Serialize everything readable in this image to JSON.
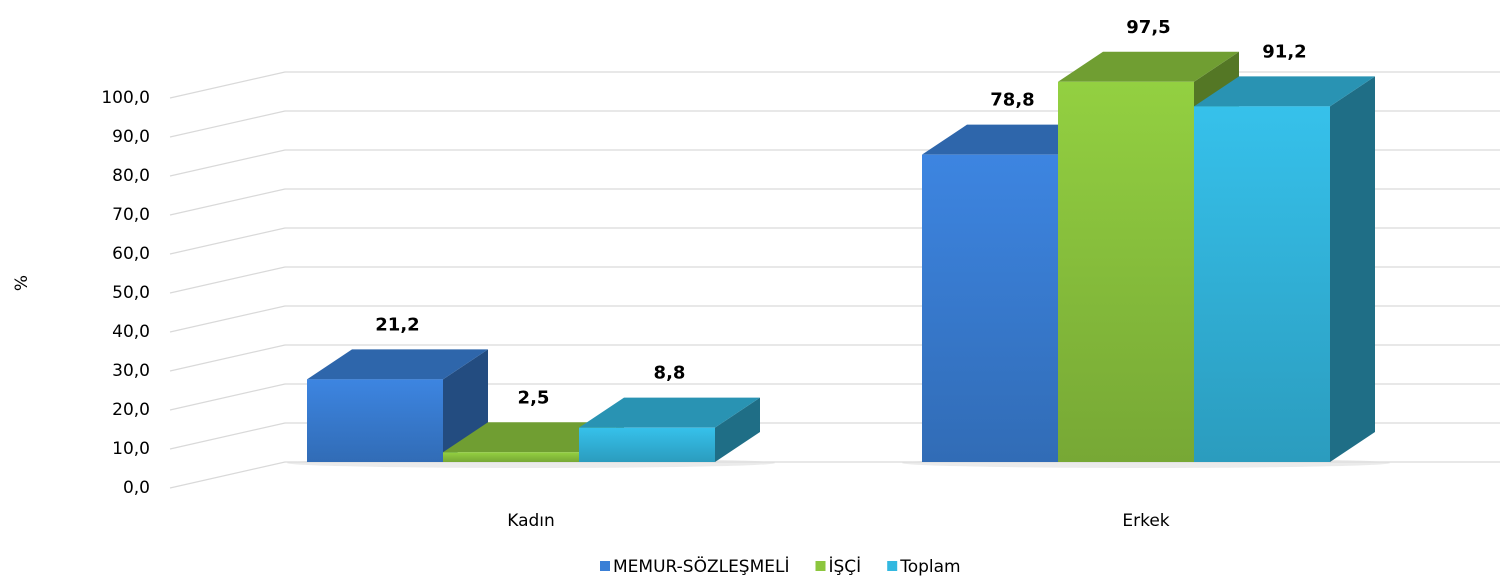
{
  "chart_data": {
    "type": "bar3d",
    "y_label": "%",
    "categories": [
      "Kadın",
      "Erkek"
    ],
    "series": [
      {
        "name": "MEMUR-SÖZLEŞMELİ",
        "color": "#3a7fd6",
        "values": [
          21.2,
          78.8
        ],
        "value_labels": [
          "21,2",
          "78,8"
        ]
      },
      {
        "name": "İŞÇİ",
        "color": "#8cc63e",
        "values": [
          2.5,
          97.5
        ],
        "value_labels": [
          "2,5",
          "97,5"
        ]
      },
      {
        "name": "Toplam",
        "color": "#33b8e0",
        "values": [
          8.8,
          91.2
        ],
        "value_labels": [
          "8,8",
          "91,2"
        ]
      }
    ],
    "ylim": [
      0,
      110
    ],
    "yticks": [
      {
        "value": 0,
        "label": "0,0"
      },
      {
        "value": 10,
        "label": "10,0"
      },
      {
        "value": 20,
        "label": "20,0"
      },
      {
        "value": 30,
        "label": "30,0"
      },
      {
        "value": 40,
        "label": "40,0"
      },
      {
        "value": 50,
        "label": "50,0"
      },
      {
        "value": 60,
        "label": "60,0"
      },
      {
        "value": 70,
        "label": "70,0"
      },
      {
        "value": 80,
        "label": "80,0"
      },
      {
        "value": 90,
        "label": "90,0"
      },
      {
        "value": 100,
        "label": "100,0"
      }
    ],
    "grid": true,
    "legend": "bottom"
  }
}
